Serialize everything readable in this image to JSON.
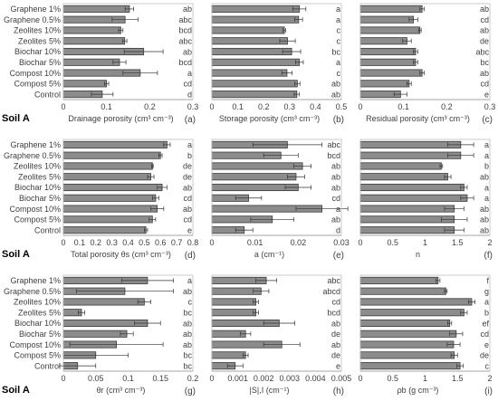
{
  "treatments": [
    "Graphene 1%",
    "Graphene 0.5%",
    "Zeolites 10%",
    "Zeolites 5%",
    "Biochar 10%",
    "Biochar 5%",
    "Compost 10%",
    "Compost 5%",
    "Control"
  ],
  "soil_label": "Soil A",
  "chart_data": [
    {
      "type": "bar",
      "panel": "(a)",
      "xlabel": "Drainage porosity (cm³ cm⁻³)",
      "xlim": [
        0,
        0.3
      ],
      "xticks": [
        "0",
        "0.1",
        "0.2",
        "0.3"
      ],
      "values": [
        0.153,
        0.143,
        0.133,
        0.142,
        0.186,
        0.13,
        0.178,
        0.1,
        0.09
      ],
      "errors": [
        0.01,
        0.03,
        0.005,
        0.005,
        0.045,
        0.015,
        0.04,
        0.005,
        0.025
      ],
      "letters": [
        "ab",
        "abc",
        "bcd",
        "abc",
        "ab",
        "bcd",
        "a",
        "cd",
        "d"
      ]
    },
    {
      "type": "bar",
      "panel": "(b)",
      "xlabel": "Storage porosity (cm³ cm⁻³)",
      "xlim": [
        0,
        0.5
      ],
      "xticks": [
        "0",
        "0.1",
        "0.2",
        "0.3",
        "0.4",
        "0.5"
      ],
      "values": [
        0.338,
        0.335,
        0.28,
        0.292,
        0.308,
        0.338,
        0.29,
        0.33,
        0.328
      ],
      "errors": [
        0.025,
        0.015,
        0.005,
        0.03,
        0.035,
        0.015,
        0.02,
        0.01,
        0.01
      ],
      "letters": [
        "a",
        "a",
        "c",
        "c",
        "bc",
        "a",
        "c",
        "ab",
        "ab"
      ]
    },
    {
      "type": "bar",
      "panel": "(c)",
      "xlabel": "Residual porosity (cm³ cm⁻³)",
      "xlim": [
        0,
        0.3
      ],
      "xticks": [
        "0",
        "0.1",
        "0.2",
        "0.3"
      ],
      "values": [
        0.143,
        0.123,
        0.138,
        0.108,
        0.128,
        0.128,
        0.143,
        0.113,
        0.093
      ],
      "errors": [
        0.005,
        0.01,
        0.003,
        0.01,
        0.005,
        0.005,
        0.005,
        0.005,
        0.015
      ],
      "letters": [
        "ab",
        "cd",
        "ab",
        "de",
        "abc",
        "bc",
        "ab",
        "cd",
        "e"
      ]
    },
    {
      "type": "bar",
      "panel": "(d)",
      "xlabel": "Total porosity θs (cm³ cm⁻³)",
      "xlim": [
        0,
        0.8
      ],
      "xticks": [
        "0",
        "0.1",
        "0.2",
        "0.3",
        "0.4",
        "0.5",
        "0.6",
        "0.7",
        "0.8"
      ],
      "values": [
        0.64,
        0.6,
        0.55,
        0.54,
        0.61,
        0.57,
        0.58,
        0.55,
        0.51
      ],
      "errors": [
        0.02,
        0.01,
        0.005,
        0.02,
        0.03,
        0.02,
        0.04,
        0.02,
        0.01
      ],
      "letters": [
        "a",
        "b",
        "de",
        "de",
        "ab",
        "cd",
        "ab",
        "cd",
        "e"
      ]
    },
    {
      "type": "bar",
      "panel": "(e)",
      "xlabel": "a (cm⁻¹)",
      "xlim": [
        0,
        0.03
      ],
      "xticks": [
        "0",
        "0.01",
        "0.02",
        "0.03"
      ],
      "values": [
        0.0175,
        0.016,
        0.021,
        0.0195,
        0.02,
        0.0085,
        0.0255,
        0.014,
        0.0075
      ],
      "errors": [
        0.008,
        0.004,
        0.002,
        0.002,
        0.003,
        0.003,
        0.006,
        0.005,
        0.002
      ],
      "letters": [
        "abc",
        "bcd",
        "ab",
        "ab",
        "ab",
        "cd",
        "a",
        "ab",
        "d"
      ]
    },
    {
      "type": "bar",
      "panel": "(f)",
      "xlabel": "n",
      "xlim": [
        0,
        2
      ],
      "xticks": [
        "0",
        "0.5",
        "1",
        "1.5",
        "2"
      ],
      "values": [
        1.55,
        1.55,
        1.25,
        1.35,
        1.6,
        1.65,
        1.45,
        1.45,
        1.45
      ],
      "errors": [
        0.2,
        0.2,
        0.02,
        0.05,
        0.05,
        0.1,
        0.15,
        0.2,
        0.15
      ],
      "letters": [
        "a",
        "a",
        "b",
        "ab",
        "a",
        "a",
        "ab",
        "ab",
        "ab"
      ]
    },
    {
      "type": "bar",
      "panel": "(g)",
      "xlabel": "θr (cm³ cm⁻³)",
      "xlim": [
        0,
        0.2
      ],
      "xticks": [
        "0",
        "0.05",
        "0.1",
        "0.15",
        "0.2"
      ],
      "values": [
        0.13,
        0.095,
        0.125,
        0.028,
        0.13,
        0.098,
        0.082,
        0.05,
        0.022
      ],
      "errors": [
        0.04,
        0.075,
        0.01,
        0.005,
        0.02,
        0.01,
        0.072,
        0.05,
        0.028
      ],
      "letters": [
        "a",
        "ab",
        "c",
        "bc",
        "ab",
        "ab",
        "ab",
        "bc",
        "bc"
      ]
    },
    {
      "type": "bar",
      "panel": "(h)",
      "xlabel": "|S|,I (cm⁻¹)",
      "xlim": [
        0,
        0.005
      ],
      "xticks": [
        "0",
        "0.001",
        "0.002",
        "0.003",
        "0.004",
        "0.005"
      ],
      "values": [
        0.0021,
        0.0019,
        0.0017,
        0.0017,
        0.0026,
        0.0013,
        0.0027,
        0.0013,
        0.0009
      ],
      "errors": [
        0.0004,
        0.0003,
        0.0001,
        0.0001,
        0.0006,
        0.0002,
        0.0007,
        0.0001,
        0.0003
      ],
      "letters": [
        "abc",
        "abcd",
        "cd",
        "bcd",
        "ab",
        "de",
        "ab",
        "de",
        "e"
      ]
    },
    {
      "type": "bar",
      "panel": "(i)",
      "xlabel": "ρb (g cm⁻³)",
      "xlim": [
        0,
        2
      ],
      "xticks": [
        "0",
        "0.5",
        "1",
        "1.5",
        "2"
      ],
      "values": [
        1.2,
        1.32,
        1.72,
        1.6,
        1.38,
        1.48,
        1.44,
        1.45,
        1.54
      ],
      "errors": [
        0.03,
        0.02,
        0.05,
        0.05,
        0.03,
        0.1,
        0.1,
        0.05,
        0.05
      ],
      "letters": [
        "f",
        "g",
        "a",
        "b",
        "ef",
        "cd",
        "e",
        "de",
        "c"
      ]
    }
  ]
}
